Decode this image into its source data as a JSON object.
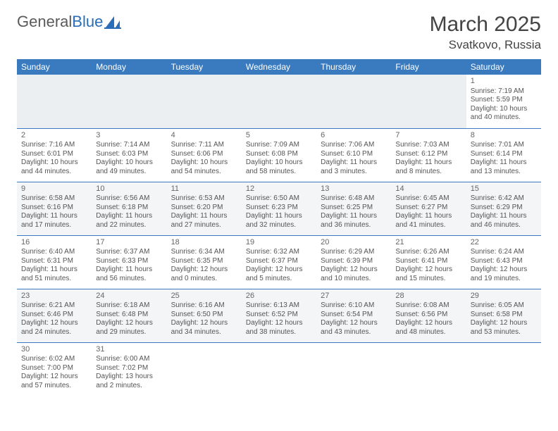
{
  "brand": {
    "first": "General",
    "second": "Blue",
    "sail_color": "#2a6db8"
  },
  "title": "March 2025",
  "location": "Svatkovo, Russia",
  "theme": {
    "header_bg": "#3a7bbf",
    "header_text": "#ffffff",
    "border_color": "#3a7bbf",
    "body_text": "#555555",
    "title_color": "#444444",
    "shade_bg": "#eceff1",
    "font_family": "Arial",
    "month_title_fontsize": 30,
    "location_fontsize": 17,
    "dayhead_fontsize": 12,
    "cell_fontsize": 10
  },
  "day_headers": [
    "Sunday",
    "Monday",
    "Tuesday",
    "Wednesday",
    "Thursday",
    "Friday",
    "Saturday"
  ],
  "weeks": [
    [
      null,
      null,
      null,
      null,
      null,
      null,
      {
        "n": "1",
        "sunrise": "7:19 AM",
        "sunset": "5:59 PM",
        "daylight": "10 hours and 40 minutes."
      }
    ],
    [
      {
        "n": "2",
        "sunrise": "7:16 AM",
        "sunset": "6:01 PM",
        "daylight": "10 hours and 44 minutes."
      },
      {
        "n": "3",
        "sunrise": "7:14 AM",
        "sunset": "6:03 PM",
        "daylight": "10 hours and 49 minutes."
      },
      {
        "n": "4",
        "sunrise": "7:11 AM",
        "sunset": "6:06 PM",
        "daylight": "10 hours and 54 minutes."
      },
      {
        "n": "5",
        "sunrise": "7:09 AM",
        "sunset": "6:08 PM",
        "daylight": "10 hours and 58 minutes."
      },
      {
        "n": "6",
        "sunrise": "7:06 AM",
        "sunset": "6:10 PM",
        "daylight": "11 hours and 3 minutes."
      },
      {
        "n": "7",
        "sunrise": "7:03 AM",
        "sunset": "6:12 PM",
        "daylight": "11 hours and 8 minutes."
      },
      {
        "n": "8",
        "sunrise": "7:01 AM",
        "sunset": "6:14 PM",
        "daylight": "11 hours and 13 minutes."
      }
    ],
    [
      {
        "n": "9",
        "sunrise": "6:58 AM",
        "sunset": "6:16 PM",
        "daylight": "11 hours and 17 minutes."
      },
      {
        "n": "10",
        "sunrise": "6:56 AM",
        "sunset": "6:18 PM",
        "daylight": "11 hours and 22 minutes."
      },
      {
        "n": "11",
        "sunrise": "6:53 AM",
        "sunset": "6:20 PM",
        "daylight": "11 hours and 27 minutes."
      },
      {
        "n": "12",
        "sunrise": "6:50 AM",
        "sunset": "6:23 PM",
        "daylight": "11 hours and 32 minutes."
      },
      {
        "n": "13",
        "sunrise": "6:48 AM",
        "sunset": "6:25 PM",
        "daylight": "11 hours and 36 minutes."
      },
      {
        "n": "14",
        "sunrise": "6:45 AM",
        "sunset": "6:27 PM",
        "daylight": "11 hours and 41 minutes."
      },
      {
        "n": "15",
        "sunrise": "6:42 AM",
        "sunset": "6:29 PM",
        "daylight": "11 hours and 46 minutes."
      }
    ],
    [
      {
        "n": "16",
        "sunrise": "6:40 AM",
        "sunset": "6:31 PM",
        "daylight": "11 hours and 51 minutes."
      },
      {
        "n": "17",
        "sunrise": "6:37 AM",
        "sunset": "6:33 PM",
        "daylight": "11 hours and 56 minutes."
      },
      {
        "n": "18",
        "sunrise": "6:34 AM",
        "sunset": "6:35 PM",
        "daylight": "12 hours and 0 minutes."
      },
      {
        "n": "19",
        "sunrise": "6:32 AM",
        "sunset": "6:37 PM",
        "daylight": "12 hours and 5 minutes."
      },
      {
        "n": "20",
        "sunrise": "6:29 AM",
        "sunset": "6:39 PM",
        "daylight": "12 hours and 10 minutes."
      },
      {
        "n": "21",
        "sunrise": "6:26 AM",
        "sunset": "6:41 PM",
        "daylight": "12 hours and 15 minutes."
      },
      {
        "n": "22",
        "sunrise": "6:24 AM",
        "sunset": "6:43 PM",
        "daylight": "12 hours and 19 minutes."
      }
    ],
    [
      {
        "n": "23",
        "sunrise": "6:21 AM",
        "sunset": "6:46 PM",
        "daylight": "12 hours and 24 minutes."
      },
      {
        "n": "24",
        "sunrise": "6:18 AM",
        "sunset": "6:48 PM",
        "daylight": "12 hours and 29 minutes."
      },
      {
        "n": "25",
        "sunrise": "6:16 AM",
        "sunset": "6:50 PM",
        "daylight": "12 hours and 34 minutes."
      },
      {
        "n": "26",
        "sunrise": "6:13 AM",
        "sunset": "6:52 PM",
        "daylight": "12 hours and 38 minutes."
      },
      {
        "n": "27",
        "sunrise": "6:10 AM",
        "sunset": "6:54 PM",
        "daylight": "12 hours and 43 minutes."
      },
      {
        "n": "28",
        "sunrise": "6:08 AM",
        "sunset": "6:56 PM",
        "daylight": "12 hours and 48 minutes."
      },
      {
        "n": "29",
        "sunrise": "6:05 AM",
        "sunset": "6:58 PM",
        "daylight": "12 hours and 53 minutes."
      }
    ],
    [
      {
        "n": "30",
        "sunrise": "6:02 AM",
        "sunset": "7:00 PM",
        "daylight": "12 hours and 57 minutes."
      },
      {
        "n": "31",
        "sunrise": "6:00 AM",
        "sunset": "7:02 PM",
        "daylight": "13 hours and 2 minutes."
      },
      null,
      null,
      null,
      null,
      null
    ]
  ],
  "labels": {
    "sunrise": "Sunrise:",
    "sunset": "Sunset:",
    "daylight": "Daylight:"
  }
}
